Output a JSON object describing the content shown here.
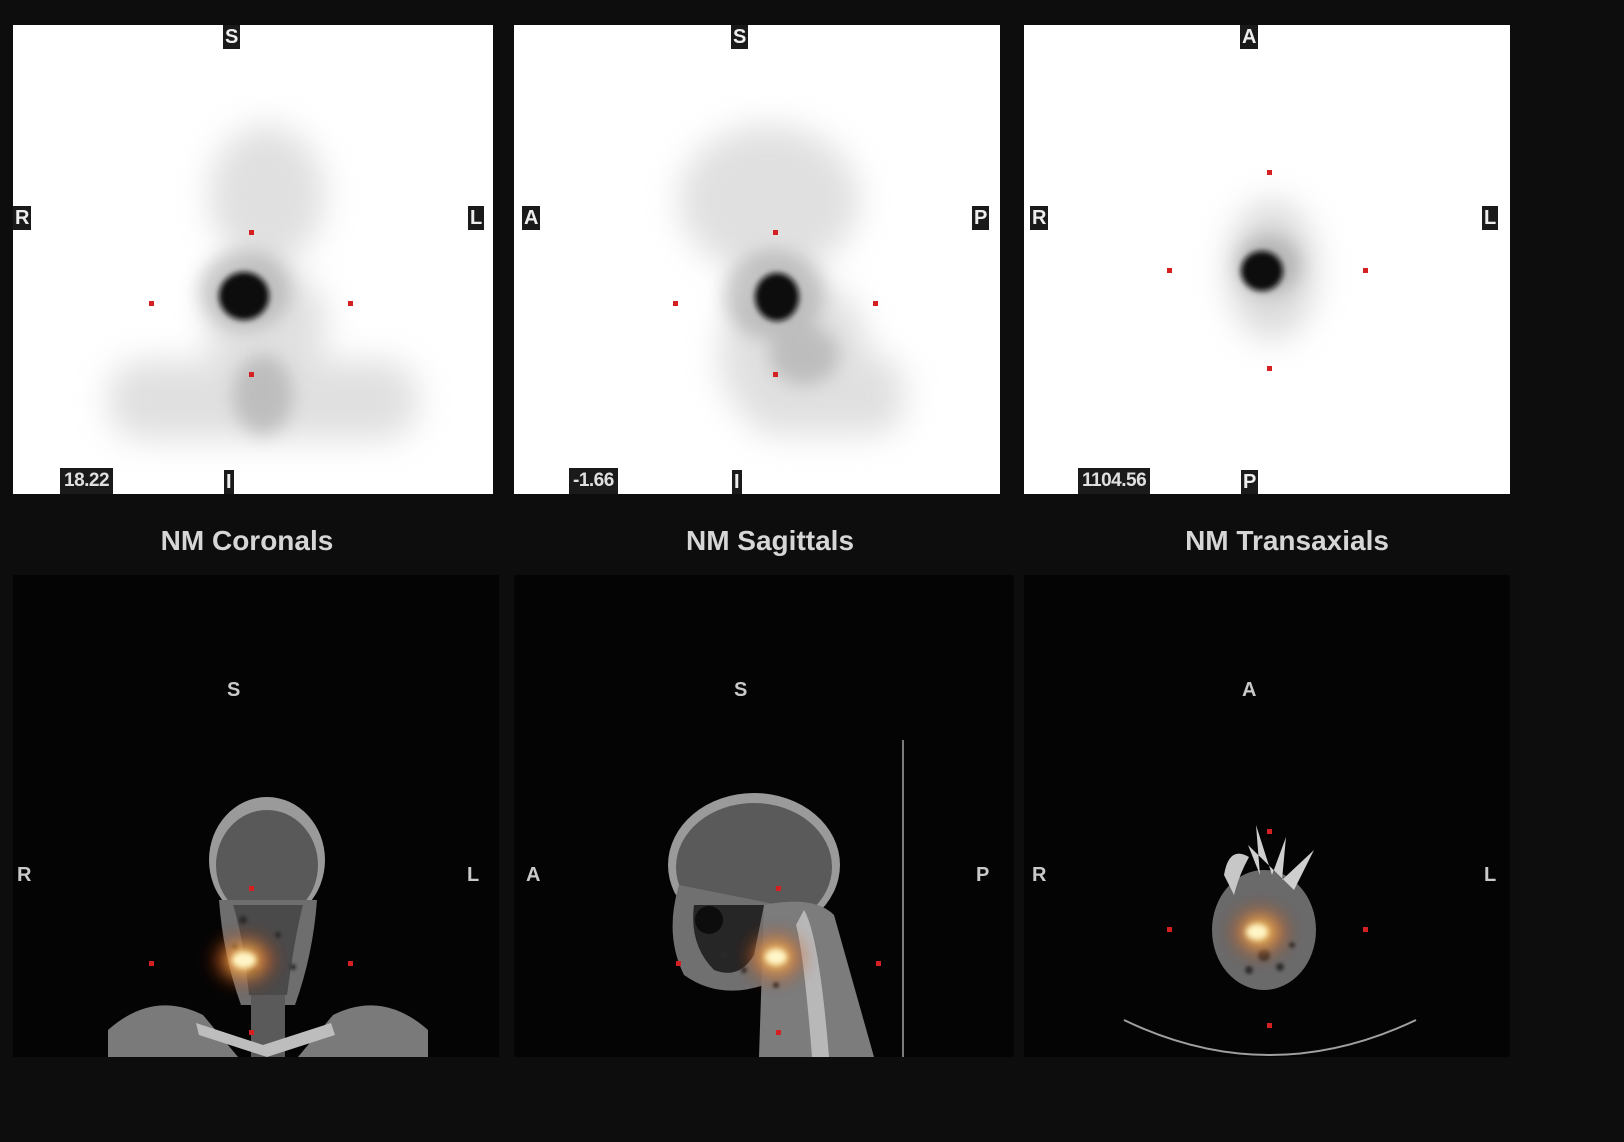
{
  "panels": {
    "nm_coronal": {
      "top": "S",
      "left": "R",
      "right": "L",
      "bottom": "I",
      "value": "18.22"
    },
    "nm_sagittal": {
      "top": "S",
      "left": "A",
      "right": "P",
      "bottom": "I",
      "value": "-1.66"
    },
    "nm_transaxial": {
      "top": "A",
      "left": "R",
      "right": "L",
      "bottom": "P",
      "value": "1104.56"
    },
    "ct_coronal": {
      "top": "S",
      "left": "R",
      "right": "L"
    },
    "ct_sagittal": {
      "top": "S",
      "left": "A",
      "right": "P"
    },
    "ct_transaxial": {
      "top": "A",
      "left": "R",
      "right": "L"
    }
  },
  "titles": {
    "coronal": "NM Coronals",
    "sagittal": "NM Sagittals",
    "transaxial": "NM Transaxials"
  },
  "colors": {
    "background": "#0d0d0d",
    "crosshair_marker": "#d42020",
    "uptake_hotspot": "#ffd23a",
    "uptake_halo": "#e6451a"
  }
}
